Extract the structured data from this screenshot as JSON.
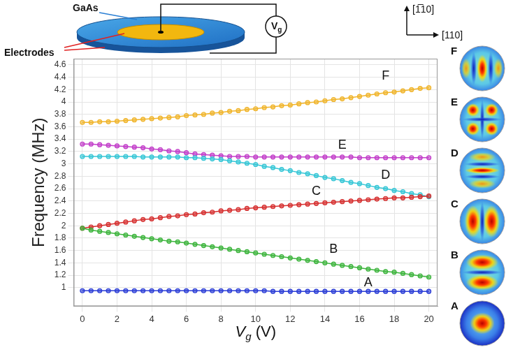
{
  "chart_data": {
    "type": "line",
    "y_label": "Frequency (MHz)",
    "x_label": {
      "main": "V",
      "sub": "g",
      "rest": " (V)"
    },
    "x": [
      0,
      0.5,
      1,
      1.5,
      2,
      2.5,
      3,
      3.5,
      4,
      4.5,
      5,
      5.5,
      6,
      6.5,
      7,
      7.5,
      8,
      8.5,
      9,
      9.5,
      10,
      10.5,
      11,
      11.5,
      12,
      12.5,
      13,
      13.5,
      14,
      14.5,
      15,
      15.5,
      16,
      16.5,
      17,
      17.5,
      18,
      18.5,
      19,
      19.5,
      20
    ],
    "series": [
      {
        "name": "A",
        "color": "#2a3cd6",
        "values": [
          0.95,
          0.95,
          0.95,
          0.95,
          0.95,
          0.95,
          0.95,
          0.95,
          0.95,
          0.95,
          0.95,
          0.95,
          0.95,
          0.95,
          0.95,
          0.95,
          0.95,
          0.95,
          0.95,
          0.95,
          0.95,
          0.95,
          0.94,
          0.94,
          0.94,
          0.94,
          0.94,
          0.94,
          0.94,
          0.94,
          0.94,
          0.94,
          0.94,
          0.94,
          0.94,
          0.94,
          0.94,
          0.94,
          0.94,
          0.94,
          0.94
        ]
      },
      {
        "name": "B",
        "color": "#3cb43c",
        "values": [
          1.96,
          1.93,
          1.91,
          1.89,
          1.87,
          1.85,
          1.83,
          1.81,
          1.79,
          1.77,
          1.75,
          1.74,
          1.72,
          1.7,
          1.68,
          1.66,
          1.64,
          1.62,
          1.6,
          1.58,
          1.56,
          1.54,
          1.52,
          1.5,
          1.48,
          1.46,
          1.44,
          1.42,
          1.4,
          1.38,
          1.36,
          1.34,
          1.32,
          1.3,
          1.28,
          1.26,
          1.25,
          1.23,
          1.21,
          1.19,
          1.17
        ]
      },
      {
        "name": "C",
        "color": "#d62f2f",
        "values": [
          1.96,
          1.98,
          2.0,
          2.02,
          2.04,
          2.06,
          2.08,
          2.1,
          2.11,
          2.13,
          2.15,
          2.16,
          2.18,
          2.19,
          2.21,
          2.22,
          2.24,
          2.25,
          2.26,
          2.28,
          2.29,
          2.3,
          2.31,
          2.32,
          2.33,
          2.34,
          2.35,
          2.36,
          2.37,
          2.38,
          2.39,
          2.4,
          2.41,
          2.42,
          2.43,
          2.44,
          2.45,
          2.45,
          2.46,
          2.47,
          2.48
        ]
      },
      {
        "name": "D",
        "color": "#35c6d6",
        "values": [
          3.12,
          3.12,
          3.12,
          3.12,
          3.12,
          3.12,
          3.12,
          3.11,
          3.11,
          3.11,
          3.11,
          3.11,
          3.1,
          3.1,
          3.09,
          3.08,
          3.07,
          3.05,
          3.03,
          3.01,
          2.99,
          2.96,
          2.94,
          2.91,
          2.89,
          2.86,
          2.84,
          2.81,
          2.78,
          2.76,
          2.73,
          2.7,
          2.68,
          2.65,
          2.62,
          2.6,
          2.57,
          2.55,
          2.52,
          2.5,
          2.47
        ]
      },
      {
        "name": "E",
        "color": "#c23ec9",
        "values": [
          3.32,
          3.32,
          3.31,
          3.3,
          3.29,
          3.28,
          3.27,
          3.26,
          3.24,
          3.23,
          3.21,
          3.2,
          3.18,
          3.16,
          3.15,
          3.14,
          3.13,
          3.12,
          3.12,
          3.12,
          3.11,
          3.11,
          3.11,
          3.11,
          3.11,
          3.11,
          3.11,
          3.11,
          3.11,
          3.11,
          3.11,
          3.11,
          3.1,
          3.1,
          3.1,
          3.1,
          3.1,
          3.1,
          3.1,
          3.1,
          3.1
        ]
      },
      {
        "name": "F",
        "color": "#f0b429",
        "values": [
          3.67,
          3.67,
          3.68,
          3.68,
          3.69,
          3.7,
          3.71,
          3.72,
          3.73,
          3.74,
          3.75,
          3.76,
          3.78,
          3.79,
          3.8,
          3.82,
          3.83,
          3.85,
          3.86,
          3.88,
          3.89,
          3.91,
          3.92,
          3.94,
          3.95,
          3.97,
          3.99,
          4.0,
          4.02,
          4.04,
          4.05,
          4.07,
          4.09,
          4.11,
          4.13,
          4.15,
          4.16,
          4.18,
          4.2,
          4.22,
          4.23
        ]
      }
    ],
    "xlim": [
      -0.5,
      20.5
    ],
    "xticks": [
      0,
      2,
      4,
      6,
      8,
      10,
      12,
      14,
      16,
      18,
      20
    ],
    "ylim": [
      0.7,
      4.7
    ],
    "yticks": [
      1,
      1.2,
      1.4,
      1.6,
      1.8,
      2,
      2.2,
      2.4,
      2.6,
      2.8,
      3,
      3.2,
      3.4,
      3.6,
      3.8,
      4,
      4.2,
      4.4,
      4.6
    ],
    "grid": true,
    "marker": "circle",
    "line_style": "solid",
    "annotations": [
      {
        "text": "F",
        "x": 17.5,
        "y": 4.42
      },
      {
        "text": "E",
        "x": 15,
        "y": 3.3
      },
      {
        "text": "D",
        "x": 17.5,
        "y": 2.82
      },
      {
        "text": "C",
        "x": 13.5,
        "y": 2.56
      },
      {
        "text": "B",
        "x": 14.5,
        "y": 1.62
      },
      {
        "text": "A",
        "x": 16.5,
        "y": 1.08
      }
    ]
  },
  "schematic": {
    "material": "GaAs",
    "electrodes": "Electrodes",
    "source": {
      "main": "V",
      "sub": "g"
    }
  },
  "directions": {
    "vertical": "[1̅10]",
    "horizontal": "[110]"
  },
  "mode_panels": [
    "F",
    "E",
    "D",
    "C",
    "B",
    "A"
  ]
}
